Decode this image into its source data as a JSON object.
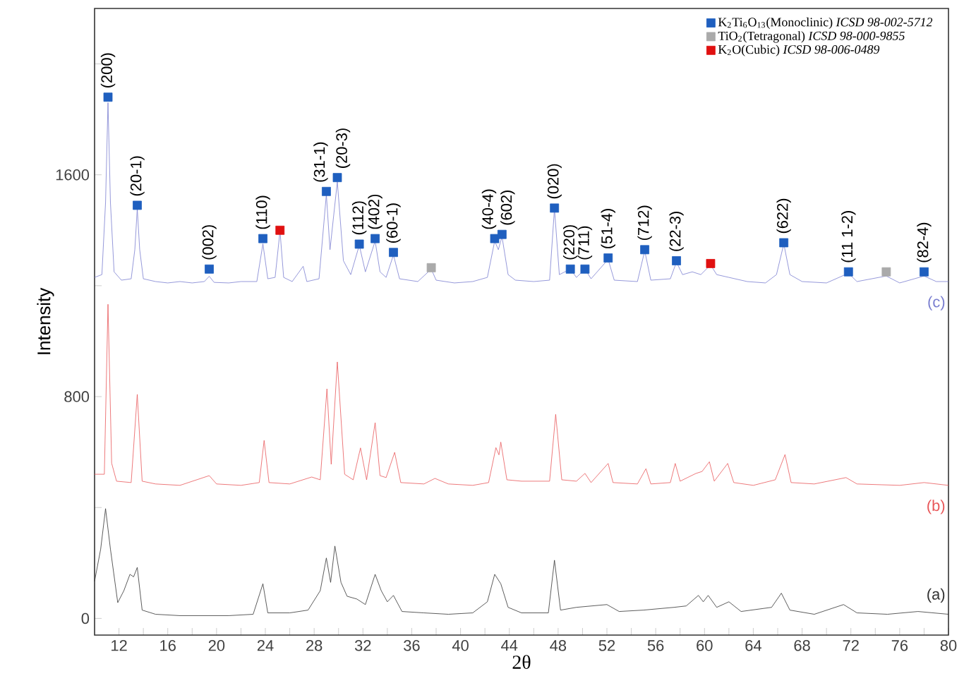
{
  "chart_data": {
    "type": "line",
    "xlabel": "2θ",
    "ylabel": "Intensity",
    "xlim": [
      10,
      80
    ],
    "ylim": [
      -60,
      2200
    ],
    "xticks": [
      12,
      {
        "value": 14,
        "label": null
      },
      16,
      {
        "value": 18,
        "label": null
      },
      20,
      {
        "value": 22,
        "label": null
      },
      24,
      {
        "value": 26,
        "label": null
      },
      28,
      {
        "value": 30,
        "label": null
      },
      32,
      {
        "value": 34,
        "label": null
      },
      36,
      {
        "value": 38,
        "label": null
      },
      40,
      {
        "value": 42,
        "label": null
      },
      44,
      {
        "value": 46,
        "label": null
      },
      48,
      {
        "value": 50,
        "label": null
      },
      52,
      {
        "value": 54,
        "label": null
      },
      56,
      {
        "value": 58,
        "label": null
      },
      60,
      {
        "value": 62,
        "label": null
      },
      64,
      {
        "value": 66,
        "label": null
      },
      68,
      {
        "value": 70,
        "label": null
      },
      72,
      {
        "value": 74,
        "label": null
      },
      76,
      {
        "value": 78,
        "label": null
      },
      80
    ],
    "yticks": [
      0,
      {
        "value": 400,
        "label": null
      },
      800,
      {
        "value": 1200,
        "label": null
      },
      1600,
      {
        "value": 2000,
        "label": null
      }
    ],
    "legend": "top right",
    "series": [
      {
        "name": "(c)",
        "marker": "none",
        "color": "#7b7fd0",
        "x": [
          10,
          10.6,
          10.9,
          11.1,
          11.3,
          11.6,
          12.2,
          13.0,
          13.3,
          13.5,
          13.7,
          14.0,
          15,
          16,
          17,
          18,
          19,
          19.4,
          19.8,
          21,
          22,
          23.3,
          23.8,
          24.2,
          24.8,
          25.2,
          25.5,
          26.2,
          27.1,
          27.4,
          28.4,
          29.0,
          29.3,
          29.9,
          30.4,
          31.0,
          31.7,
          32.2,
          33.0,
          33.4,
          33.9,
          34.5,
          35.0,
          36.5,
          37.6,
          38.0,
          39.5,
          41,
          42.2,
          42.8,
          43.1,
          43.4,
          43.9,
          44.5,
          46,
          47.3,
          47.7,
          48.1,
          49.0,
          49.5,
          50.2,
          50.7,
          52.1,
          52.6,
          54.5,
          55.1,
          55.6,
          57.2,
          57.7,
          58.2,
          59,
          59.7,
          60.5,
          61,
          62,
          63.5,
          65,
          65.9,
          66.5,
          67.0,
          68,
          70,
          71.8,
          72.5,
          74.9,
          76,
          78.0,
          79,
          80
        ],
        "values": [
          1230,
          1240,
          1500,
          1860,
          1500,
          1250,
          1220,
          1225,
          1330,
          1478,
          1330,
          1225,
          1215,
          1210,
          1215,
          1210,
          1215,
          1234,
          1212,
          1210,
          1215,
          1215,
          1351,
          1225,
          1230,
          1397,
          1230,
          1215,
          1270,
          1215,
          1225,
          1529,
          1330,
          1575,
          1290,
          1240,
          1346,
          1250,
          1361,
          1250,
          1230,
          1311,
          1225,
          1215,
          1260,
          1220,
          1210,
          1215,
          1230,
          1361,
          1330,
          1377,
          1240,
          1220,
          1215,
          1220,
          1478,
          1240,
          1260,
          1230,
          1260,
          1225,
          1295,
          1220,
          1215,
          1326,
          1220,
          1225,
          1285,
          1240,
          1250,
          1240,
          1275,
          1240,
          1230,
          1215,
          1210,
          1240,
          1351,
          1240,
          1215,
          1210,
          1245,
          1215,
          1235,
          1210,
          1235,
          1215,
          1215
        ]
      },
      {
        "name": "(b)",
        "marker": "none",
        "color": "#e8585a",
        "x": [
          10,
          10.8,
          11.1,
          11.4,
          11.8,
          13.0,
          13.5,
          13.9,
          15,
          17,
          19.4,
          20,
          22,
          23.5,
          23.9,
          24.3,
          26,
          27.8,
          28.5,
          29.05,
          29.4,
          29.9,
          30.5,
          31.2,
          31.8,
          32.3,
          33.0,
          33.4,
          33.9,
          34.6,
          35.1,
          37,
          37.9,
          39,
          41,
          42.3,
          42.9,
          43.15,
          43.3,
          43.8,
          45,
          47.3,
          47.8,
          48.3,
          49.5,
          50.2,
          50.7,
          52.1,
          52.5,
          54.5,
          55.2,
          55.6,
          57.2,
          57.6,
          58,
          59.3,
          59.8,
          60.4,
          60.8,
          61.9,
          62.4,
          64,
          65.8,
          66.6,
          67.1,
          69,
          71.6,
          72.5,
          76,
          78,
          80
        ],
        "values": [
          520,
          520,
          1133,
          560,
          495,
          490,
          808,
          495,
          485,
          480,
          515,
          485,
          480,
          490,
          642,
          490,
          485,
          510,
          500,
          828,
          556,
          925,
          520,
          500,
          615,
          500,
          706,
          515,
          508,
          599,
          490,
          485,
          505,
          485,
          480,
          490,
          616,
          590,
          636,
          500,
          495,
          495,
          736,
          500,
          495,
          523,
          490,
          559,
          490,
          485,
          540,
          485,
          490,
          559,
          495,
          523,
          530,
          565,
          495,
          559,
          490,
          480,
          500,
          591,
          490,
          485,
          508,
          485,
          480,
          490,
          480
        ]
      },
      {
        "name": "(a)",
        "marker": "none",
        "color": "#333333",
        "x": [
          10,
          10.5,
          10.9,
          11.3,
          11.9,
          12.4,
          12.9,
          13.2,
          13.5,
          13.9,
          15,
          17,
          19,
          21,
          23,
          23.8,
          24.2,
          26,
          27.5,
          28.5,
          29.0,
          29.35,
          29.7,
          30.2,
          30.7,
          31.5,
          32.2,
          33.0,
          33.5,
          34.0,
          34.5,
          35.2,
          37,
          39,
          41,
          42.2,
          42.8,
          43.3,
          43.9,
          45,
          47.2,
          47.7,
          48.2,
          49.5,
          52,
          53,
          55,
          57.5,
          58.5,
          59.5,
          59.9,
          60.3,
          61,
          62,
          63,
          65.5,
          66.3,
          67,
          69,
          71.4,
          72.5,
          75,
          77.5,
          80
        ],
        "values": [
          134,
          250,
          396,
          250,
          57,
          100,
          159,
          150,
          184,
          30,
          15,
          10,
          10,
          10,
          15,
          125,
          20,
          20,
          30,
          100,
          218,
          130,
          261,
          130,
          80,
          70,
          50,
          159,
          100,
          60,
          83,
          25,
          20,
          15,
          20,
          60,
          159,
          125,
          40,
          20,
          20,
          210,
          30,
          40,
          50,
          25,
          30,
          40,
          45,
          83,
          60,
          83,
          40,
          60,
          25,
          40,
          91,
          30,
          15,
          50,
          20,
          15,
          25,
          15
        ]
      },
      {
        "name": "K$_{2}$Ti$_{6}$O$_{13}$(Monoclinic) *ICSD 98-002-5712*",
        "type": "scatter",
        "marker": "square",
        "color": "#1f5fbf",
        "x": [
          11.1,
          13.5,
          19.4,
          23.8,
          29.0,
          29.9,
          31.7,
          33.0,
          34.5,
          42.8,
          43.4,
          47.7,
          49.0,
          50.2,
          52.1,
          55.1,
          57.7,
          66.5,
          71.8,
          78.0
        ],
        "values": [
          1880,
          1490,
          1260,
          1370,
          1540,
          1590,
          1350,
          1370,
          1320,
          1370,
          1385,
          1480,
          1260,
          1260,
          1300,
          1330,
          1290,
          1355,
          1250,
          1250
        ]
      },
      {
        "name": "TiO$_{2}$(Tetragonal) *ICSD 98-000-9855*",
        "type": "scatter",
        "marker": "square",
        "color": "#aaaaaa",
        "x": [
          37.6,
          74.9
        ],
        "values": [
          1265,
          1250
        ]
      },
      {
        "name": "K$_{2}$O(Cubic) *ICSD 98-006-0489*",
        "type": "scatter",
        "marker": "square",
        "color": "#e01010",
        "x": [
          25.2,
          60.5
        ],
        "values": [
          1400,
          1280
        ]
      }
    ],
    "annotations": [
      {
        "text": "(200)",
        "x": 11.1,
        "y": 1880
      },
      {
        "text": "(20-1)",
        "x": 13.5,
        "y": 1490
      },
      {
        "text": "(002)",
        "x": 19.4,
        "y": 1260
      },
      {
        "text": "(110)",
        "x": 23.8,
        "y": 1370
      },
      {
        "text": "(31-1)",
        "x": 29.0,
        "y": 1540
      },
      {
        "text": "(20-3)",
        "x": 29.9,
        "y": 1590
      },
      {
        "text": "(112)",
        "x": 31.7,
        "y": 1350
      },
      {
        "text": "(402)",
        "x": 33.0,
        "y": 1370
      },
      {
        "text": "(60-1)",
        "x": 34.5,
        "y": 1320
      },
      {
        "text": "(40-4)",
        "x": 42.8,
        "y": 1370
      },
      {
        "text": "(602)",
        "x": 43.4,
        "y": 1385
      },
      {
        "text": "(020)",
        "x": 47.7,
        "y": 1480
      },
      {
        "text": "(220)",
        "x": 49.0,
        "y": 1260
      },
      {
        "text": "(711)",
        "x": 50.2,
        "y": 1260
      },
      {
        "text": "(51-4)",
        "x": 52.1,
        "y": 1300
      },
      {
        "text": "(712)",
        "x": 55.1,
        "y": 1330
      },
      {
        "text": "(22-3)",
        "x": 57.7,
        "y": 1290
      },
      {
        "text": "(622)",
        "x": 66.5,
        "y": 1355
      },
      {
        "text": "(11 1-2)",
        "x": 71.8,
        "y": 1250
      },
      {
        "text": "(82-4)",
        "x": 78.0,
        "y": 1250
      }
    ]
  }
}
